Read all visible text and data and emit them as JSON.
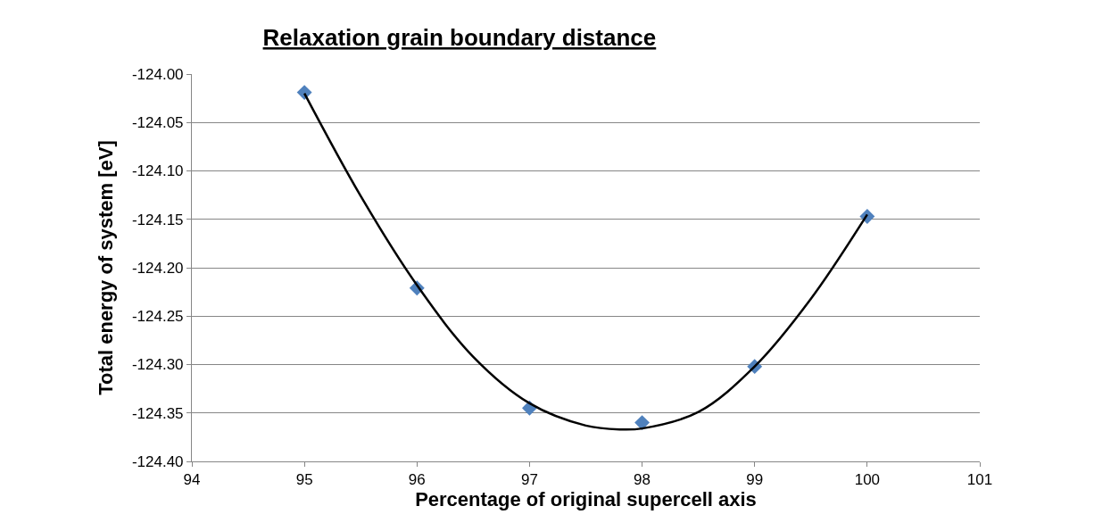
{
  "chart_data": {
    "type": "scatter",
    "title": "Relaxation grain boundary distance",
    "xlabel": "Percentage of original supercell axis",
    "ylabel": "Total energy of system [eV]",
    "x": [
      95,
      96,
      97,
      98,
      99,
      100
    ],
    "series": [
      {
        "color": "#4f81bd",
        "marker": "diamond",
        "values": [
          -124.019,
          -124.221,
          -124.345,
          -124.36,
          -124.302,
          -124.147
        ]
      },
      {
        "type": "line",
        "color": "#000000",
        "marker": "none",
        "x": [
          95,
          95.5,
          96,
          96.5,
          97,
          97.5,
          97.8,
          98,
          98.5,
          99,
          99.5,
          100
        ],
        "values": [
          -124.02,
          -124.126,
          -124.218,
          -124.292,
          -124.34,
          -124.363,
          -124.367,
          -124.366,
          -124.349,
          -124.302,
          -124.232,
          -124.145
        ]
      }
    ],
    "xlim": [
      94,
      101
    ],
    "xticks": [
      94,
      95,
      96,
      97,
      98,
      99,
      100,
      101
    ],
    "ylim": [
      -124.4,
      -124.0
    ],
    "yticks": [
      {
        "value": -124.4,
        "label": "-124.40"
      },
      {
        "value": -124.35,
        "label": "-124.35"
      },
      {
        "value": -124.3,
        "label": "-124.30"
      },
      {
        "value": -124.25,
        "label": "-124.25"
      },
      {
        "value": -124.2,
        "label": "-124.20"
      },
      {
        "value": -124.15,
        "label": "-124.15"
      },
      {
        "value": -124.1,
        "label": "-124.10"
      },
      {
        "value": -124.05,
        "label": "-124.05"
      },
      {
        "value": -124.0,
        "label": "-124.00"
      }
    ],
    "grid": "y"
  }
}
